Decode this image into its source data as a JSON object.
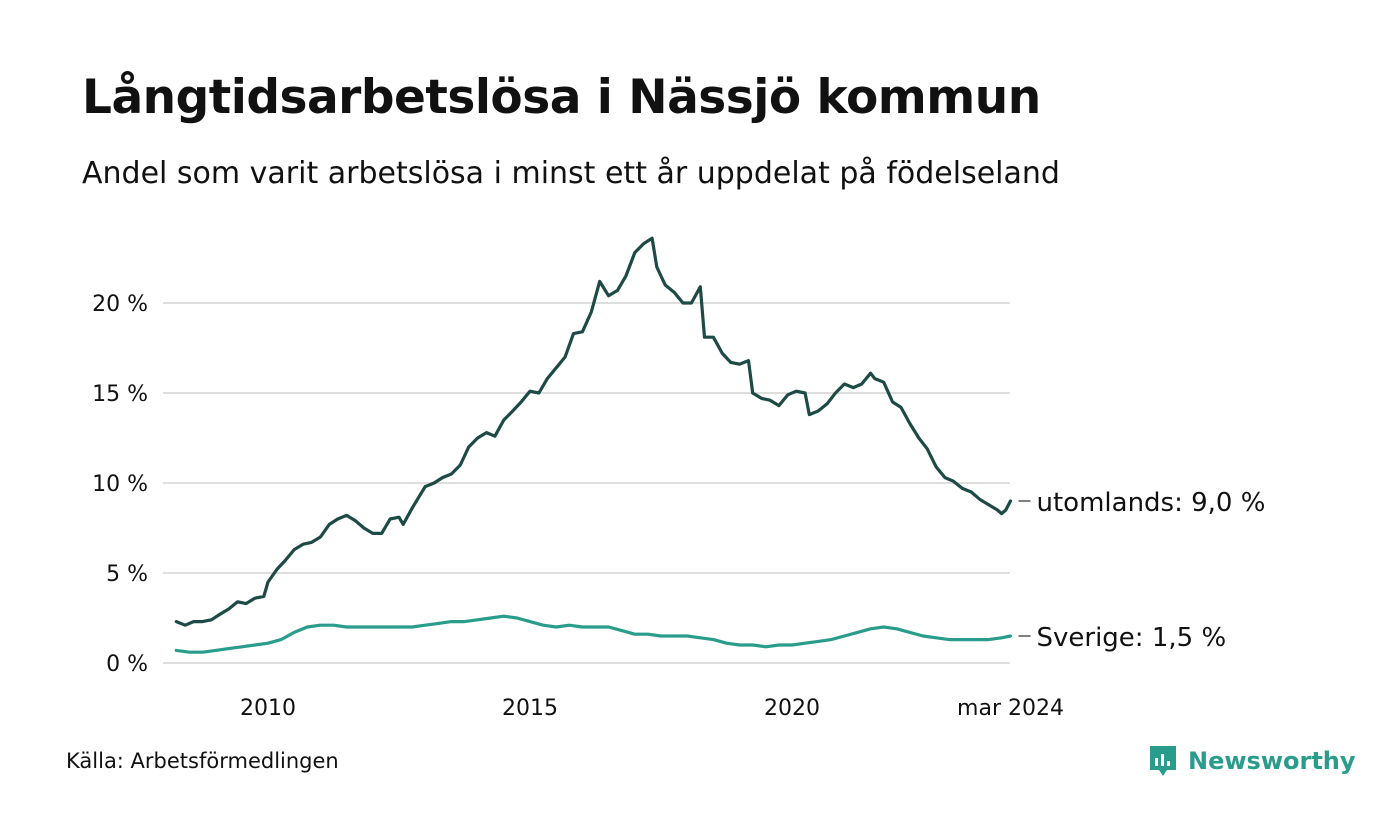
{
  "title": "Långtidsarbetslösa i Nässjö kommun",
  "subtitle": "Andel som varit arbetslösa i minst ett år uppdelat på födelseland",
  "source": "Källa: Arbetsförmedlingen",
  "brand": {
    "name": "Newsworthy",
    "icon": "newsworthy-logo-icon",
    "color": "#2a9c8c"
  },
  "chart_data": {
    "type": "line",
    "title": "Långtidsarbetslösa i Nässjö kommun",
    "xlabel": "",
    "ylabel": "",
    "xlim": [
      2008.25,
      2024.25
    ],
    "ylim": [
      0,
      23
    ],
    "grid": true,
    "y_ticks": [
      0,
      5,
      10,
      15,
      20
    ],
    "y_tick_labels": [
      "0 %",
      "5 %",
      "10 %",
      "15 %",
      "20 %"
    ],
    "x_ticks": [
      2010,
      2015,
      2020,
      2024.17
    ],
    "x_tick_labels": [
      "2010",
      "2015",
      "2020",
      "mar 2024"
    ],
    "series": [
      {
        "name": "utomlands",
        "end_label": "utomlands: 9,0 %",
        "color": "#1e4a45",
        "points": [
          [
            2008.25,
            2.3
          ],
          [
            2008.42,
            2.1
          ],
          [
            2008.58,
            2.3
          ],
          [
            2008.75,
            2.3
          ],
          [
            2008.92,
            2.4
          ],
          [
            2009.08,
            2.7
          ],
          [
            2009.25,
            3.0
          ],
          [
            2009.42,
            3.4
          ],
          [
            2009.58,
            3.3
          ],
          [
            2009.75,
            3.6
          ],
          [
            2009.92,
            3.7
          ],
          [
            2010.0,
            4.5
          ],
          [
            2010.17,
            5.2
          ],
          [
            2010.33,
            5.7
          ],
          [
            2010.5,
            6.3
          ],
          [
            2010.67,
            6.6
          ],
          [
            2010.83,
            6.7
          ],
          [
            2011.0,
            7.0
          ],
          [
            2011.17,
            7.7
          ],
          [
            2011.33,
            8.0
          ],
          [
            2011.5,
            8.2
          ],
          [
            2011.67,
            7.9
          ],
          [
            2011.83,
            7.5
          ],
          [
            2012.0,
            7.2
          ],
          [
            2012.17,
            7.2
          ],
          [
            2012.33,
            8.0
          ],
          [
            2012.5,
            8.1
          ],
          [
            2012.58,
            7.7
          ],
          [
            2012.75,
            8.6
          ],
          [
            2013.0,
            9.8
          ],
          [
            2013.17,
            10.0
          ],
          [
            2013.33,
            10.3
          ],
          [
            2013.5,
            10.5
          ],
          [
            2013.67,
            11.0
          ],
          [
            2013.83,
            12.0
          ],
          [
            2014.0,
            12.5
          ],
          [
            2014.17,
            12.8
          ],
          [
            2014.33,
            12.6
          ],
          [
            2014.5,
            13.5
          ],
          [
            2014.67,
            14.0
          ],
          [
            2014.83,
            14.5
          ],
          [
            2015.0,
            15.1
          ],
          [
            2015.17,
            15.0
          ],
          [
            2015.33,
            15.8
          ],
          [
            2015.5,
            16.4
          ],
          [
            2015.67,
            17.0
          ],
          [
            2015.83,
            18.3
          ],
          [
            2016.0,
            18.4
          ],
          [
            2016.17,
            19.5
          ],
          [
            2016.33,
            21.2
          ],
          [
            2016.5,
            20.4
          ],
          [
            2016.67,
            20.7
          ],
          [
            2016.83,
            21.5
          ],
          [
            2017.0,
            22.8
          ],
          [
            2017.17,
            23.3
          ],
          [
            2017.33,
            23.6
          ],
          [
            2017.42,
            22.0
          ],
          [
            2017.58,
            21.0
          ],
          [
            2017.75,
            20.6
          ],
          [
            2017.92,
            20.0
          ],
          [
            2018.08,
            20.0
          ],
          [
            2018.25,
            20.9
          ],
          [
            2018.33,
            18.1
          ],
          [
            2018.5,
            18.1
          ],
          [
            2018.67,
            17.2
          ],
          [
            2018.83,
            16.7
          ],
          [
            2019.0,
            16.6
          ],
          [
            2019.17,
            16.8
          ],
          [
            2019.25,
            15.0
          ],
          [
            2019.42,
            14.7
          ],
          [
            2019.58,
            14.6
          ],
          [
            2019.75,
            14.3
          ],
          [
            2019.92,
            14.9
          ],
          [
            2020.08,
            15.1
          ],
          [
            2020.25,
            15.0
          ],
          [
            2020.33,
            13.8
          ],
          [
            2020.5,
            14.0
          ],
          [
            2020.67,
            14.4
          ],
          [
            2020.83,
            15.0
          ],
          [
            2021.0,
            15.5
          ],
          [
            2021.17,
            15.3
          ],
          [
            2021.33,
            15.5
          ],
          [
            2021.5,
            16.1
          ],
          [
            2021.58,
            15.8
          ],
          [
            2021.75,
            15.6
          ],
          [
            2021.92,
            14.5
          ],
          [
            2022.08,
            14.2
          ],
          [
            2022.25,
            13.3
          ],
          [
            2022.42,
            12.5
          ],
          [
            2022.58,
            11.9
          ],
          [
            2022.75,
            10.9
          ],
          [
            2022.92,
            10.3
          ],
          [
            2023.08,
            10.1
          ],
          [
            2023.25,
            9.7
          ],
          [
            2023.42,
            9.5
          ],
          [
            2023.58,
            9.1
          ],
          [
            2023.75,
            8.8
          ],
          [
            2023.92,
            8.5
          ],
          [
            2024.0,
            8.3
          ],
          [
            2024.08,
            8.5
          ],
          [
            2024.17,
            9.0
          ]
        ]
      },
      {
        "name": "Sverige",
        "end_label": "Sverige: 1,5 %",
        "color": "#2a9c8c",
        "points": [
          [
            2008.25,
            0.7
          ],
          [
            2008.5,
            0.6
          ],
          [
            2008.75,
            0.6
          ],
          [
            2009.0,
            0.7
          ],
          [
            2009.25,
            0.8
          ],
          [
            2009.5,
            0.9
          ],
          [
            2009.75,
            1.0
          ],
          [
            2010.0,
            1.1
          ],
          [
            2010.25,
            1.3
          ],
          [
            2010.5,
            1.7
          ],
          [
            2010.75,
            2.0
          ],
          [
            2011.0,
            2.1
          ],
          [
            2011.25,
            2.1
          ],
          [
            2011.5,
            2.0
          ],
          [
            2011.75,
            2.0
          ],
          [
            2012.0,
            2.0
          ],
          [
            2012.25,
            2.0
          ],
          [
            2012.5,
            2.0
          ],
          [
            2012.75,
            2.0
          ],
          [
            2013.0,
            2.1
          ],
          [
            2013.25,
            2.2
          ],
          [
            2013.5,
            2.3
          ],
          [
            2013.75,
            2.3
          ],
          [
            2014.0,
            2.4
          ],
          [
            2014.25,
            2.5
          ],
          [
            2014.5,
            2.6
          ],
          [
            2014.75,
            2.5
          ],
          [
            2015.0,
            2.3
          ],
          [
            2015.25,
            2.1
          ],
          [
            2015.5,
            2.0
          ],
          [
            2015.75,
            2.1
          ],
          [
            2016.0,
            2.0
          ],
          [
            2016.25,
            2.0
          ],
          [
            2016.5,
            2.0
          ],
          [
            2016.75,
            1.8
          ],
          [
            2017.0,
            1.6
          ],
          [
            2017.25,
            1.6
          ],
          [
            2017.5,
            1.5
          ],
          [
            2017.75,
            1.5
          ],
          [
            2018.0,
            1.5
          ],
          [
            2018.25,
            1.4
          ],
          [
            2018.5,
            1.3
          ],
          [
            2018.75,
            1.1
          ],
          [
            2019.0,
            1.0
          ],
          [
            2019.25,
            1.0
          ],
          [
            2019.5,
            0.9
          ],
          [
            2019.75,
            1.0
          ],
          [
            2020.0,
            1.0
          ],
          [
            2020.25,
            1.1
          ],
          [
            2020.5,
            1.2
          ],
          [
            2020.75,
            1.3
          ],
          [
            2021.0,
            1.5
          ],
          [
            2021.25,
            1.7
          ],
          [
            2021.5,
            1.9
          ],
          [
            2021.75,
            2.0
          ],
          [
            2022.0,
            1.9
          ],
          [
            2022.25,
            1.7
          ],
          [
            2022.5,
            1.5
          ],
          [
            2022.75,
            1.4
          ],
          [
            2023.0,
            1.3
          ],
          [
            2023.25,
            1.3
          ],
          [
            2023.5,
            1.3
          ],
          [
            2023.75,
            1.3
          ],
          [
            2024.0,
            1.4
          ],
          [
            2024.17,
            1.5
          ]
        ]
      }
    ]
  }
}
